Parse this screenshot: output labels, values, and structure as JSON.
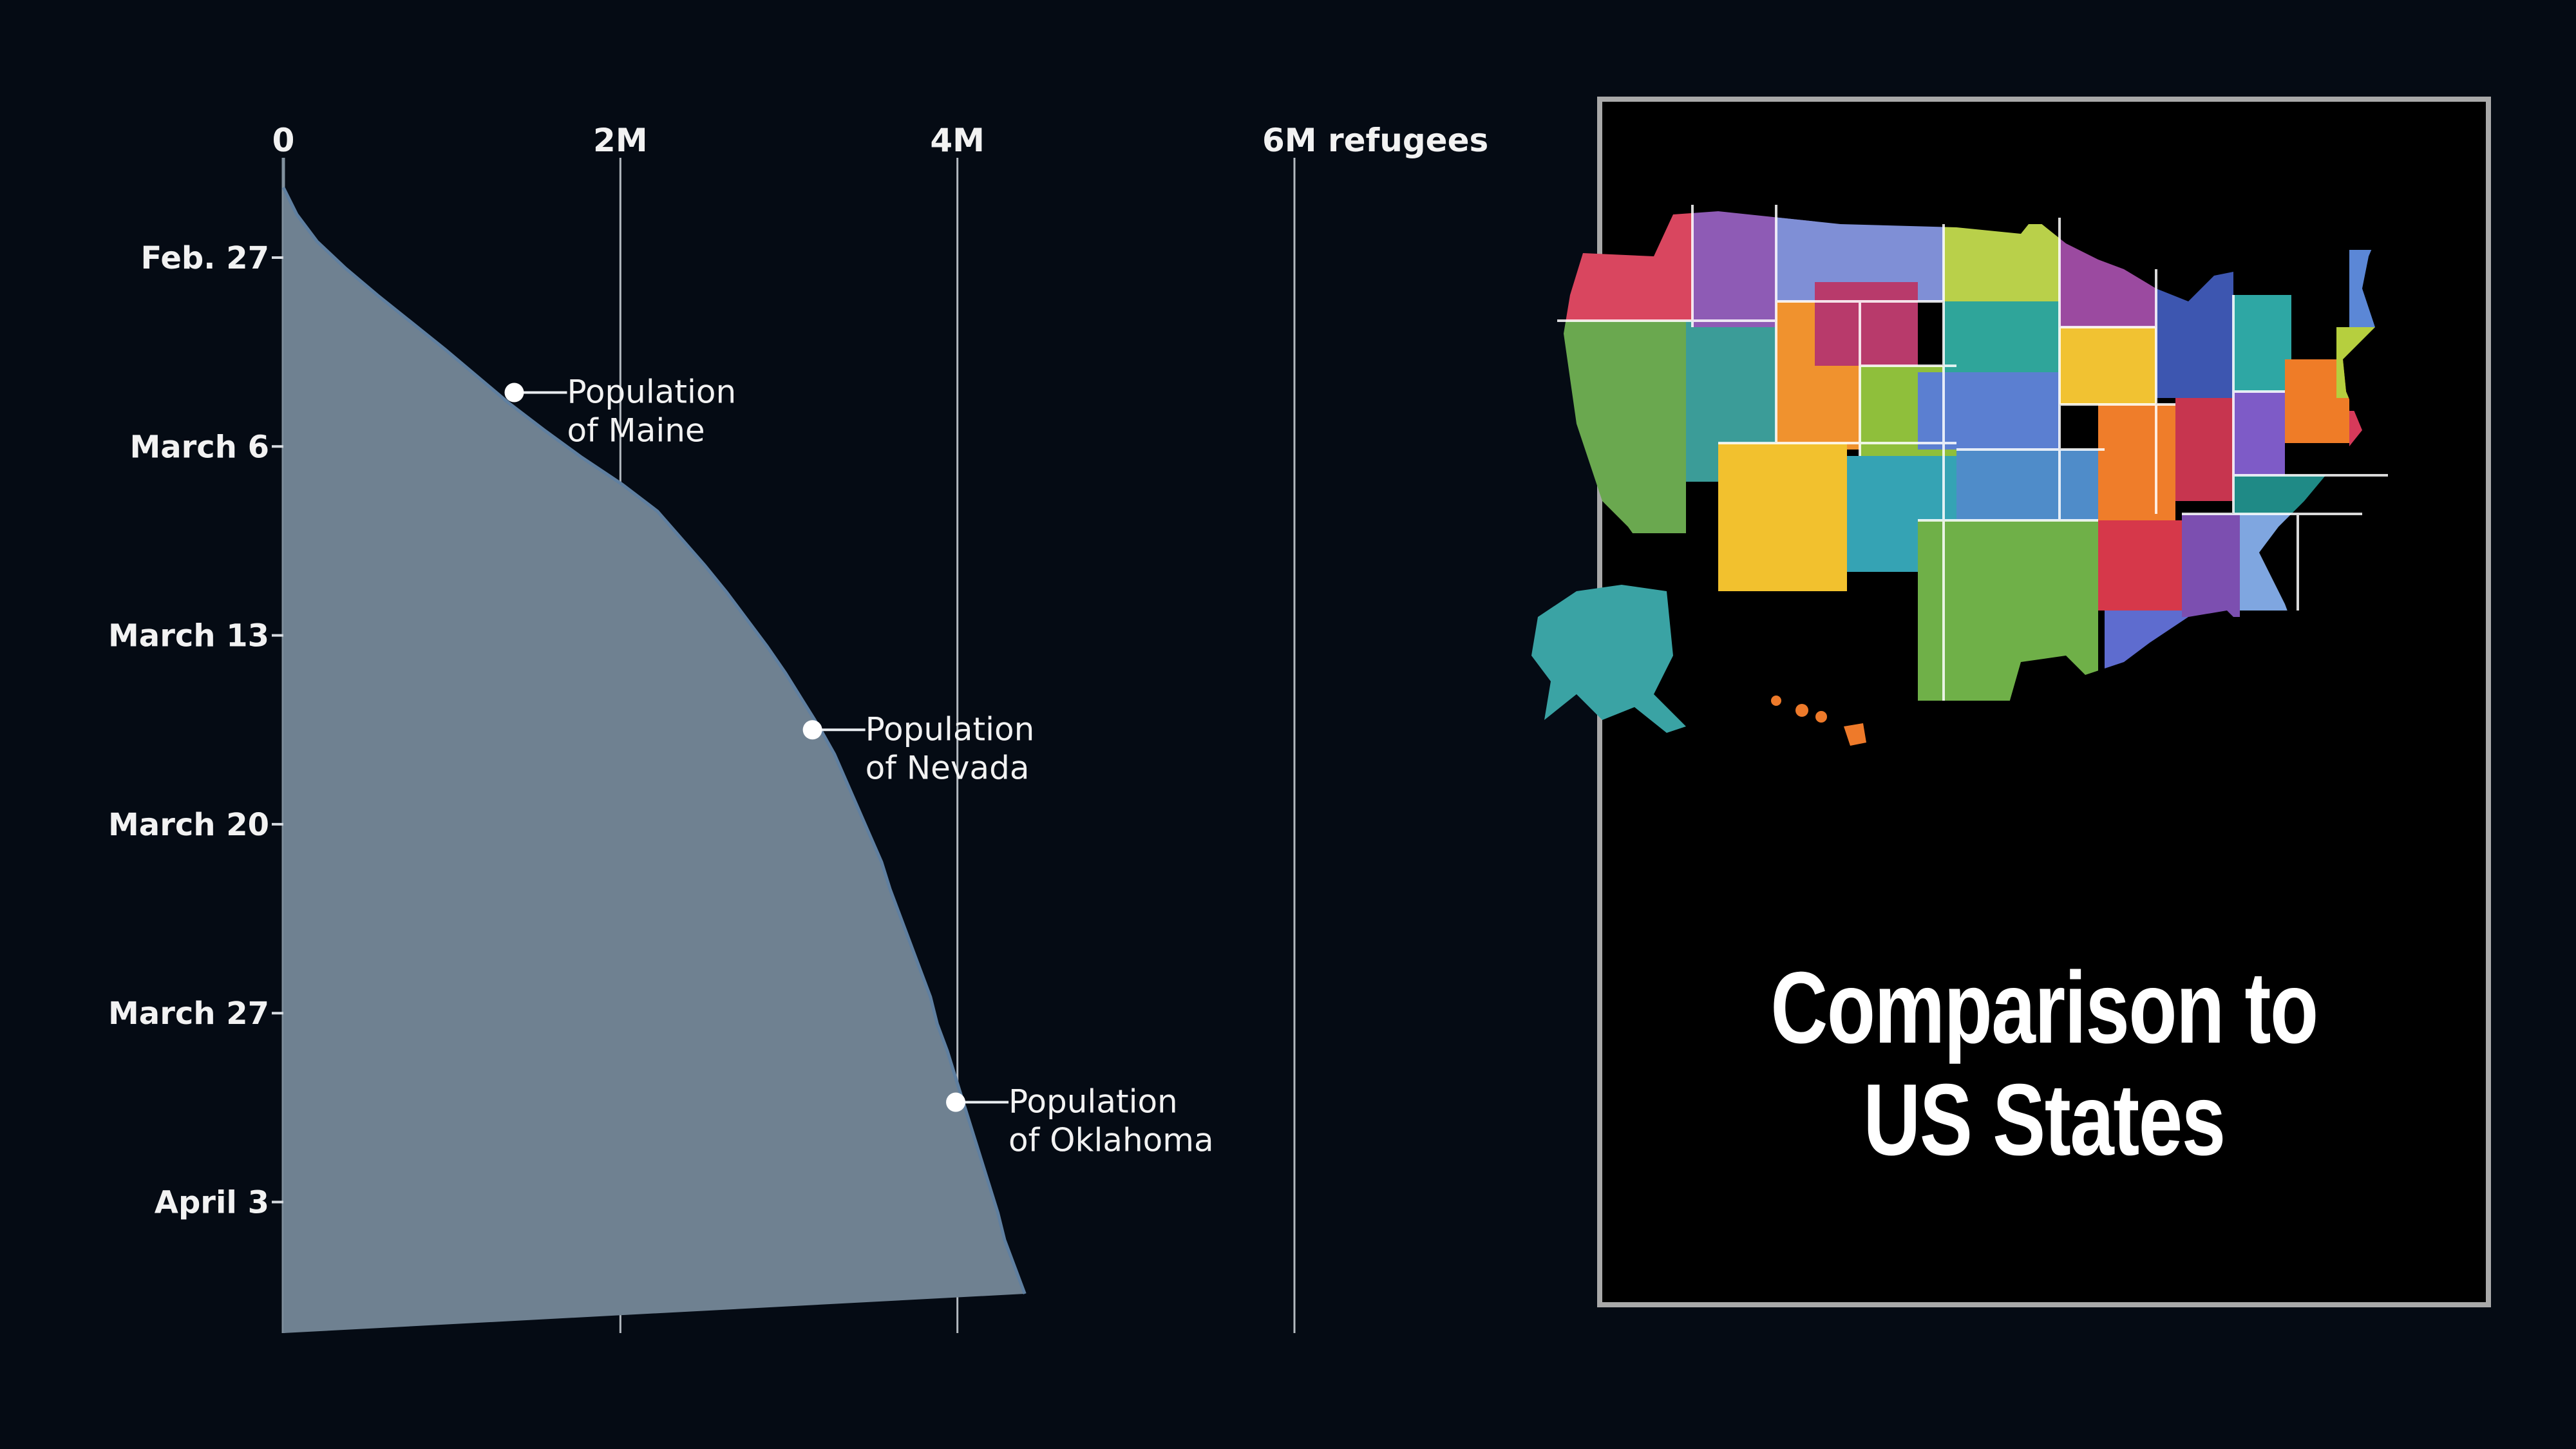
{
  "chart_data": {
    "type": "area",
    "x_axis_ticks": [
      "0",
      "2M",
      "4M",
      "6M refugees"
    ],
    "x_tick_values": [
      0,
      2000000,
      4000000,
      6000000
    ],
    "xlim": [
      0,
      6000000
    ],
    "y_axis_ticks": [
      "Feb. 27",
      "March 6",
      "March 13",
      "March 20",
      "March 27",
      "April 3"
    ],
    "y_tick_days": [
      0,
      7,
      14,
      21,
      28,
      35
    ],
    "grid": "vertical",
    "series": [
      {
        "dates": [
          "Feb. 24",
          "Feb. 25",
          "Feb. 26",
          "Feb. 27",
          "Feb. 28",
          "March 1",
          "March 2",
          "March 3",
          "March 4",
          "March 5",
          "March 6",
          "March 7",
          "March 8",
          "March 9",
          "March 10",
          "March 11",
          "March 12",
          "March 13",
          "March 14",
          "March 15",
          "March 16",
          "March 17",
          "March 18",
          "March 19",
          "March 20",
          "March 21",
          "March 22",
          "March 23",
          "March 24",
          "March 25",
          "March 26",
          "March 27",
          "March 28",
          "March 29",
          "March 30",
          "March 31",
          "April 1",
          "April 2",
          "April 3",
          "April 4",
          "April 5",
          "April 6"
        ],
        "day_index": [
          -3,
          -2,
          -1,
          0,
          1,
          2,
          3,
          4,
          5,
          6,
          7,
          8,
          9,
          10,
          11,
          12,
          13,
          14,
          15,
          16,
          17,
          18,
          19,
          20,
          21,
          22,
          23,
          24,
          25,
          26,
          27,
          28,
          29,
          30,
          31,
          32,
          33,
          34,
          35,
          36,
          37,
          38
        ],
        "values": [
          0,
          80000,
          200000,
          370000,
          560000,
          760000,
          960000,
          1150000,
          1340000,
          1550000,
          1770000,
          2010000,
          2220000,
          2360000,
          2500000,
          2630000,
          2750000,
          2870000,
          2980000,
          3080000,
          3180000,
          3270000,
          3340000,
          3410000,
          3480000,
          3550000,
          3600000,
          3660000,
          3720000,
          3780000,
          3840000,
          3880000,
          3940000,
          3990000,
          4040000,
          4090000,
          4140000,
          4190000,
          4240000,
          4280000,
          4340000,
          4400000
        ]
      }
    ],
    "annotations": [
      {
        "line1": "Population",
        "line2": "of Maine",
        "value": 1370000,
        "day": 5.0
      },
      {
        "line1": "Population",
        "line2": "of Nevada",
        "value": 3140000,
        "day": 17.5
      },
      {
        "line1": "Population",
        "line2": "of Oklahoma",
        "value": 3990000,
        "day": 31.3
      }
    ],
    "area_color": "#6f8191",
    "line_color": "#5f7fa0"
  },
  "panel": {
    "caption_line1": "Comparison to",
    "caption_line2": "US States",
    "map_icon": "us-states-map-icon"
  }
}
